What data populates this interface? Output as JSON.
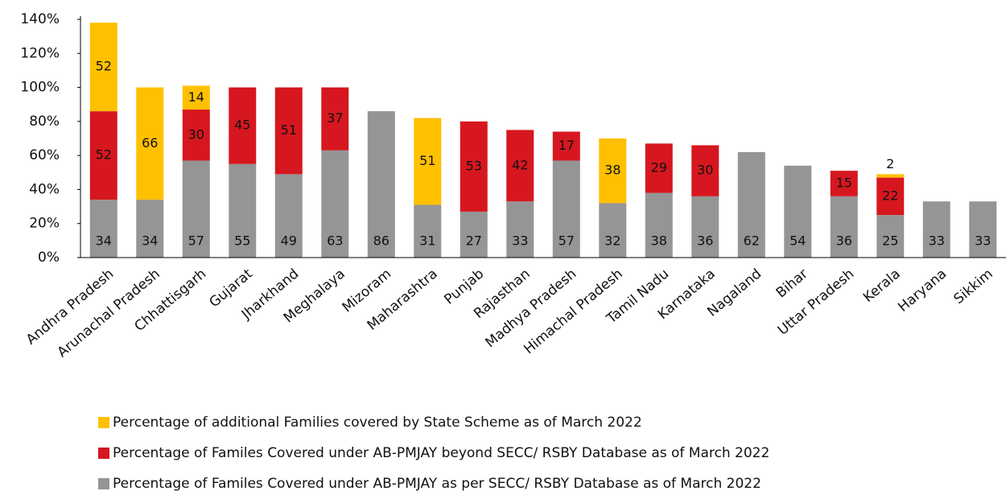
{
  "chart_data": {
    "type": "stacked_bar",
    "categories": [
      "Andhra Pradesh",
      "Arunachal Pradesh",
      "Chhattisgarh",
      "Gujarat",
      "Jharkhand",
      "Meghalaya",
      "Mizoram",
      "Maharashtra",
      "Punjab",
      "Rajasthan",
      "Madhya Pradesh",
      "Himachal Pradesh",
      "Tamil Nadu",
      "Karnataka",
      "Nagaland",
      "Bihar",
      "Uttar Pradesh",
      "Kerala",
      "Haryana",
      "Sikkim"
    ],
    "series": [
      {
        "name": "Percentage of additional Families covered by State Scheme as of March 2022",
        "color": "#FFC000",
        "values": [
          52,
          66,
          14,
          null,
          null,
          null,
          null,
          51,
          null,
          null,
          null,
          38,
          null,
          null,
          null,
          null,
          null,
          2,
          null,
          null
        ]
      },
      {
        "name": "Percentage of Familes Covered under AB-PMJAY beyond SECC/ RSBY Database as of March 2022",
        "color": "#D6171F",
        "values": [
          52,
          null,
          30,
          45,
          51,
          37,
          null,
          null,
          53,
          42,
          17,
          null,
          29,
          30,
          null,
          null,
          15,
          22,
          null,
          null
        ]
      },
      {
        "name": "Percentage of Familes Covered under AB-PMJAY as per SECC/ RSBY Database as of March 2022",
        "color": "#959595",
        "values": [
          34,
          34,
          57,
          55,
          49,
          63,
          86,
          31,
          27,
          33,
          57,
          32,
          38,
          36,
          62,
          54,
          36,
          25,
          33,
          33
        ]
      }
    ],
    "ylim": [
      0,
      140
    ],
    "yticks": [
      {
        "value": 0,
        "label": "0%"
      },
      {
        "value": 20,
        "label": "20%"
      },
      {
        "value": 40,
        "label": "40%"
      },
      {
        "value": 60,
        "label": "60%"
      },
      {
        "value": 80,
        "label": "80%"
      },
      {
        "value": 100,
        "label": "100%"
      },
      {
        "value": 120,
        "label": "120%"
      },
      {
        "value": 140,
        "label": "140%"
      }
    ],
    "grid": false,
    "legend": "bottom"
  }
}
